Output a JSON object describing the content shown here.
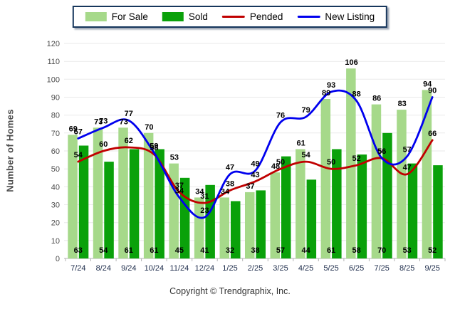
{
  "legend": {
    "items": [
      {
        "label": "For Sale",
        "swatch": "bar",
        "color": "#a6d98a"
      },
      {
        "label": "Sold",
        "swatch": "bar",
        "color": "#0aa10a"
      },
      {
        "label": "Pended",
        "swatch": "line",
        "color": "#c00000"
      },
      {
        "label": "New Listing",
        "swatch": "line",
        "color": "#0000ee"
      }
    ]
  },
  "chart_data": {
    "type": "bar",
    "subtype": "grouped bars with smoothed overlay lines",
    "categories": [
      "7/24",
      "8/24",
      "9/24",
      "10/24",
      "11/24",
      "12/24",
      "1/25",
      "2/25",
      "3/25",
      "4/25",
      "5/25",
      "6/25",
      "7/25",
      "8/25",
      "9/25"
    ],
    "series": [
      {
        "name": "For Sale",
        "type": "bar",
        "color": "#a6d98a",
        "values": [
          69,
          73,
          73,
          70,
          53,
          34,
          34,
          37,
          48,
          61,
          89,
          106,
          86,
          83,
          94
        ]
      },
      {
        "name": "Sold",
        "type": "bar",
        "color": "#0aa10a",
        "values": [
          63,
          54,
          61,
          61,
          45,
          41,
          32,
          38,
          57,
          44,
          61,
          58,
          70,
          53,
          52
        ]
      },
      {
        "name": "Pended",
        "type": "line",
        "color": "#c00000",
        "values": [
          54,
          60,
          62,
          58,
          37,
          31,
          38,
          43,
          50,
          54,
          50,
          52,
          56,
          47,
          66
        ]
      },
      {
        "name": "New Listing",
        "type": "line",
        "color": "#0000ee",
        "values": [
          67,
          73,
          77,
          59,
          34,
          23,
          47,
          49,
          76,
          79,
          93,
          88,
          56,
          57,
          90
        ]
      }
    ],
    "title": "",
    "xlabel": "",
    "ylabel": "Number of Homes",
    "ylim": [
      0,
      120
    ],
    "ytick_step": 10,
    "grid": "horizontal",
    "legend_position": "top-center",
    "data_labels": "on"
  },
  "axis_style": {
    "ytick_color": "#4d4d4d",
    "xtick_color": "#1c2b4a",
    "gridline_color": "#eaeaea",
    "axisline_color": "#b3b3b3",
    "datalabel_color": "#000000"
  },
  "footer": {
    "copyright": "Copyright © Trendgraphix, Inc."
  }
}
